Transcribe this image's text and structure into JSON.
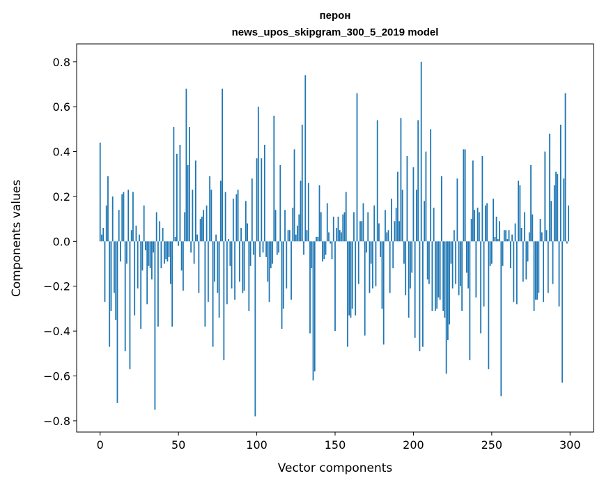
{
  "chart_data": {
    "type": "bar",
    "title": "перон",
    "subtitle": "news_upos_skipgram_300_5_2019 model",
    "xlabel": "Vector components",
    "ylabel": "Components values",
    "xlim": [
      -15,
      315
    ],
    "ylim": [
      -0.85,
      0.88
    ],
    "xticks": [
      0,
      50,
      100,
      150,
      200,
      250,
      300
    ],
    "yticks": [
      -0.8,
      -0.6,
      -0.4,
      -0.2,
      0.0,
      0.2,
      0.4,
      0.6,
      0.8
    ],
    "bar_color": "#1f77b4",
    "x": [
      0,
      1,
      2,
      3,
      4,
      5,
      6,
      7,
      8,
      9,
      10,
      11,
      12,
      13,
      14,
      15,
      16,
      17,
      18,
      19,
      20,
      21,
      22,
      23,
      24,
      25,
      26,
      27,
      28,
      29,
      30,
      31,
      32,
      33,
      34,
      35,
      36,
      37,
      38,
      39,
      40,
      41,
      42,
      43,
      44,
      45,
      46,
      47,
      48,
      49,
      50,
      51,
      52,
      53,
      54,
      55,
      56,
      57,
      58,
      59,
      60,
      61,
      62,
      63,
      64,
      65,
      66,
      67,
      68,
      69,
      70,
      71,
      72,
      73,
      74,
      75,
      76,
      77,
      78,
      79,
      80,
      81,
      82,
      83,
      84,
      85,
      86,
      87,
      88,
      89,
      90,
      91,
      92,
      93,
      94,
      95,
      96,
      97,
      98,
      99,
      100,
      101,
      102,
      103,
      104,
      105,
      106,
      107,
      108,
      109,
      110,
      111,
      112,
      113,
      114,
      115,
      116,
      117,
      118,
      119,
      120,
      121,
      122,
      123,
      124,
      125,
      126,
      127,
      128,
      129,
      130,
      131,
      132,
      133,
      134,
      135,
      136,
      137,
      138,
      139,
      140,
      141,
      142,
      143,
      144,
      145,
      146,
      147,
      148,
      149,
      150,
      151,
      152,
      153,
      154,
      155,
      156,
      157,
      158,
      159,
      160,
      161,
      162,
      163,
      164,
      165,
      166,
      167,
      168,
      169,
      170,
      171,
      172,
      173,
      174,
      175,
      176,
      177,
      178,
      179,
      180,
      181,
      182,
      183,
      184,
      185,
      186,
      187,
      188,
      189,
      190,
      191,
      192,
      193,
      194,
      195,
      196,
      197,
      198,
      199,
      200,
      201,
      202,
      203,
      204,
      205,
      206,
      207,
      208,
      209,
      210,
      211,
      212,
      213,
      214,
      215,
      216,
      217,
      218,
      219,
      220,
      221,
      222,
      223,
      224,
      225,
      226,
      227,
      228,
      229,
      230,
      231,
      232,
      233,
      234,
      235,
      236,
      237,
      238,
      239,
      240,
      241,
      242,
      243,
      244,
      245,
      246,
      247,
      248,
      249,
      250,
      251,
      252,
      253,
      254,
      255,
      256,
      257,
      258,
      259,
      260,
      261,
      262,
      263,
      264,
      265,
      266,
      267,
      268,
      269,
      270,
      271,
      272,
      273,
      274,
      275,
      276,
      277,
      278,
      279,
      280,
      281,
      282,
      283,
      284,
      285,
      286,
      287,
      288,
      289,
      290,
      291,
      292,
      293,
      294,
      295,
      296,
      297,
      298,
      299
    ],
    "values": [
      0.44,
      0.03,
      0.06,
      -0.27,
      0.16,
      0.29,
      -0.47,
      -0.31,
      0.2,
      -0.23,
      -0.35,
      -0.72,
      0.14,
      -0.09,
      0.21,
      0.22,
      -0.49,
      -0.1,
      0.23,
      -0.57,
      0.05,
      0.22,
      -0.33,
      0.07,
      -0.21,
      0.03,
      -0.39,
      -0.13,
      0.16,
      -0.04,
      -0.28,
      -0.11,
      -0.12,
      -0.17,
      -0.05,
      -0.75,
      0.13,
      -0.38,
      0.09,
      -0.12,
      0.06,
      -0.1,
      -0.08,
      -0.09,
      -0.07,
      -0.19,
      -0.38,
      0.51,
      0.02,
      0.39,
      -0.02,
      0.43,
      -0.13,
      -0.22,
      0.13,
      0.68,
      0.34,
      0.51,
      -0.05,
      0.23,
      -0.1,
      0.36,
      0.03,
      -0.23,
      0.1,
      0.11,
      0.14,
      -0.38,
      0.16,
      -0.27,
      0.29,
      0.23,
      -0.47,
      -0.18,
      0.03,
      -0.23,
      -0.34,
      0.27,
      0.68,
      -0.53,
      0.22,
      -0.28,
      0.01,
      -0.11,
      -0.21,
      0.19,
      -0.26,
      0.21,
      0.23,
      -0.18,
      0.06,
      -0.23,
      -0.22,
      0.18,
      0.08,
      -0.31,
      -0.11,
      0.28,
      -0.06,
      -0.78,
      0.37,
      0.6,
      -0.07,
      0.37,
      -0.05,
      0.43,
      -0.07,
      -0.18,
      -0.27,
      -0.12,
      -0.1,
      0.56,
      0.14,
      -0.06,
      -0.05,
      0.34,
      -0.39,
      -0.3,
      0.14,
      -0.21,
      0.05,
      0.05,
      -0.26,
      0.15,
      0.41,
      0.03,
      0.07,
      0.12,
      0.27,
      0.52,
      -0.06,
      0.74,
      0.05,
      0.26,
      -0.41,
      -0.12,
      -0.62,
      -0.58,
      0.02,
      0.02,
      0.25,
      0.13,
      -0.09,
      -0.08,
      -0.06,
      0.17,
      0.04,
      -0.01,
      -0.08,
      0.11,
      -0.4,
      0.06,
      0.11,
      0.05,
      0.04,
      0.12,
      0.13,
      0.22,
      -0.47,
      -0.33,
      -0.34,
      -0.3,
      0.13,
      -0.33,
      0.66,
      -0.19,
      0.09,
      0.09,
      0.17,
      -0.42,
      -0.05,
      0.13,
      -0.23,
      -0.1,
      -0.21,
      0.16,
      -0.2,
      0.54,
      0.08,
      -0.07,
      -0.3,
      -0.46,
      0.14,
      0.04,
      0.05,
      -0.23,
      0.19,
      -0.12,
      0.09,
      0.15,
      0.31,
      0.09,
      0.55,
      0.23,
      -0.1,
      -0.24,
      0.38,
      -0.34,
      -0.21,
      -0.14,
      0.33,
      -0.43,
      0.23,
      0.54,
      -0.49,
      0.8,
      -0.47,
      0.18,
      0.4,
      -0.17,
      -0.19,
      0.5,
      -0.31,
      0.15,
      -0.31,
      -0.3,
      -0.25,
      -0.26,
      0.29,
      -0.31,
      -0.34,
      -0.59,
      -0.44,
      -0.37,
      -0.1,
      -0.21,
      0.05,
      -0.19,
      0.28,
      -0.24,
      -0.2,
      -0.31,
      0.41,
      0.41,
      -0.14,
      -0.21,
      -0.53,
      0.1,
      0.36,
      0.14,
      -0.25,
      0.15,
      0.13,
      -0.41,
      0.38,
      -0.29,
      0.16,
      0.17,
      -0.57,
      -0.11,
      -0.1,
      0.19,
      0.02,
      0.11,
      0.01,
      0.09,
      -0.69,
      -0.11,
      0.05,
      0.05,
      0.01,
      0.05,
      -0.12,
      0.03,
      -0.27,
      0.08,
      -0.28,
      0.27,
      0.25,
      0.06,
      -0.18,
      0.13,
      -0.17,
      -0.09,
      0.04,
      0.34,
      0.12,
      -0.31,
      -0.26,
      -0.26,
      -0.23,
      0.1,
      0.04,
      -0.27,
      0.4,
      0.05,
      -0.23,
      0.48,
      0.18,
      -0.19,
      0.25,
      0.31,
      0.3,
      -0.29,
      0.52,
      -0.63,
      0.28,
      0.66,
      -0.01,
      0.16
    ]
  }
}
